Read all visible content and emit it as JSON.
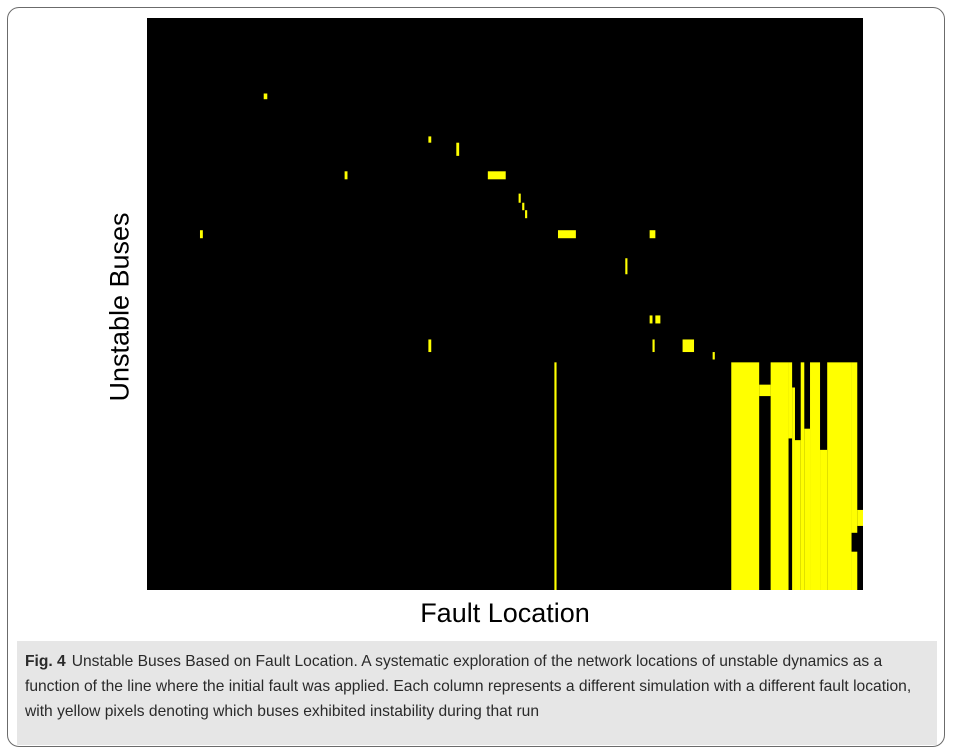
{
  "chart_data": {
    "type": "heatmap",
    "title": "",
    "xlabel": "Fault Location",
    "ylabel": "Unstable Buses",
    "xlim": [
      0,
      100
    ],
    "ylim": [
      0,
      100
    ],
    "background_color": "#000000",
    "cell_color": "#ffff00",
    "cells": [
      {
        "x0": 16.3,
        "x1": 16.8,
        "y0": 85.8,
        "y1": 86.8
      },
      {
        "x0": 39.3,
        "x1": 39.7,
        "y0": 78.2,
        "y1": 79.3
      },
      {
        "x0": 43.2,
        "x1": 43.6,
        "y0": 75.9,
        "y1": 78.2
      },
      {
        "x0": 27.6,
        "x1": 28.0,
        "y0": 71.8,
        "y1": 73.2
      },
      {
        "x0": 47.6,
        "x1": 50.1,
        "y0": 71.8,
        "y1": 73.2
      },
      {
        "x0": 51.9,
        "x1": 52.2,
        "y0": 67.7,
        "y1": 69.3
      },
      {
        "x0": 52.4,
        "x1": 52.7,
        "y0": 66.4,
        "y1": 67.7
      },
      {
        "x0": 52.8,
        "x1": 53.1,
        "y0": 65.0,
        "y1": 66.4
      },
      {
        "x0": 7.4,
        "x1": 7.8,
        "y0": 61.5,
        "y1": 62.9
      },
      {
        "x0": 57.4,
        "x1": 59.9,
        "y0": 61.5,
        "y1": 62.9
      },
      {
        "x0": 70.2,
        "x1": 71.0,
        "y0": 61.5,
        "y1": 62.9
      },
      {
        "x0": 66.8,
        "x1": 67.1,
        "y0": 55.2,
        "y1": 58.0
      },
      {
        "x0": 70.2,
        "x1": 70.6,
        "y0": 46.6,
        "y1": 48.0
      },
      {
        "x0": 71.0,
        "x1": 71.7,
        "y0": 46.6,
        "y1": 48.0
      },
      {
        "x0": 39.3,
        "x1": 39.7,
        "y0": 41.6,
        "y1": 43.8
      },
      {
        "x0": 70.6,
        "x1": 70.9,
        "y0": 41.6,
        "y1": 43.8
      },
      {
        "x0": 74.8,
        "x1": 76.4,
        "y0": 41.6,
        "y1": 43.8
      },
      {
        "x0": 79.0,
        "x1": 79.3,
        "y0": 40.3,
        "y1": 41.6
      },
      {
        "x0": 56.9,
        "x1": 57.2,
        "y0": 0.0,
        "y1": 39.8
      },
      {
        "x0": 81.6,
        "x1": 85.5,
        "y0": 0.0,
        "y1": 39.8
      },
      {
        "x0": 85.5,
        "x1": 87.1,
        "y0": 33.9,
        "y1": 35.9
      },
      {
        "x0": 87.1,
        "x1": 89.6,
        "y0": 0.0,
        "y1": 39.8
      },
      {
        "x0": 89.6,
        "x1": 90.1,
        "y0": 26.5,
        "y1": 39.8
      },
      {
        "x0": 90.1,
        "x1": 90.5,
        "y0": 0.0,
        "y1": 35.4
      },
      {
        "x0": 90.5,
        "x1": 91.3,
        "y0": 0.0,
        "y1": 26.2
      },
      {
        "x0": 91.3,
        "x1": 91.8,
        "y0": 0.0,
        "y1": 39.8
      },
      {
        "x0": 91.8,
        "x1": 92.6,
        "y0": 0.0,
        "y1": 28.2
      },
      {
        "x0": 92.6,
        "x1": 94.0,
        "y0": 0.0,
        "y1": 39.8
      },
      {
        "x0": 94.0,
        "x1": 95.0,
        "y0": 0.0,
        "y1": 24.5
      },
      {
        "x0": 95.0,
        "x1": 98.4,
        "y0": 0.0,
        "y1": 39.8
      },
      {
        "x0": 98.4,
        "x1": 99.2,
        "y0": 10.0,
        "y1": 39.8
      },
      {
        "x0": 99.2,
        "x1": 100.0,
        "y0": 11.2,
        "y1": 14.0
      },
      {
        "x0": 98.4,
        "x1": 99.2,
        "y0": 0.0,
        "y1": 6.7
      }
    ]
  },
  "caption": {
    "label": "Fig. 4",
    "text": "Unstable Buses Based on Fault Location. A systematic exploration of the network locations of unstable dynamics as a function of the line where the initial fault was applied. Each column represents a different simulation with a different fault location, with yellow pixels denoting which buses exhibited instability during that run"
  }
}
